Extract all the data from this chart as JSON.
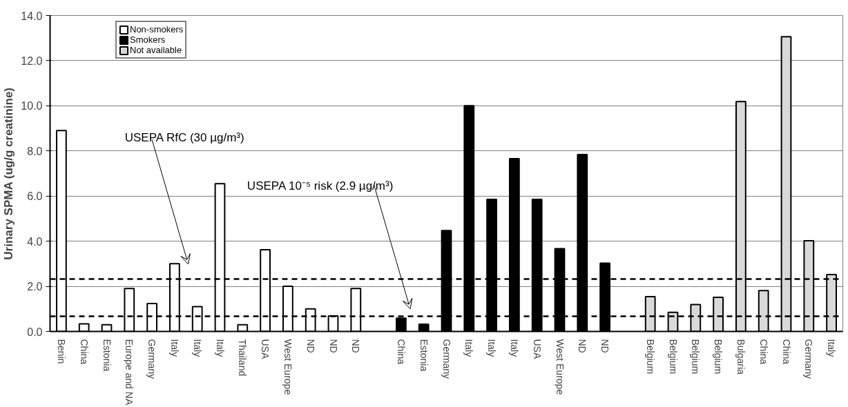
{
  "chart_data": {
    "type": "bar",
    "ylabel": "Urinary SPMA (ug/g creatinine)",
    "categories": [
      "Benin",
      "China",
      "Estonia",
      "Europe and NA",
      "Germany",
      "Italy",
      "Italy",
      "Italy",
      "Thailand",
      "USA",
      "West Europe",
      "ND",
      "ND",
      "ND",
      null,
      "China",
      "Estonia",
      "Germany",
      "Italy",
      "Italy",
      "Italy",
      "USA",
      "West Europe",
      "ND",
      "ND",
      null,
      "Belgium",
      "Belgium",
      "Belgium",
      "Belgium",
      "Bulgaria",
      "China",
      "China",
      "Germany",
      "Italy"
    ],
    "series": [
      {
        "name": "Non-smokers",
        "color": "#ffffff",
        "values": [
          8.9,
          0.34,
          0.3,
          1.9,
          1.24,
          3.0,
          1.1,
          6.55,
          0.3,
          3.62,
          2.0,
          1.0,
          0.69,
          1.9,
          null,
          null,
          null,
          null,
          null,
          null,
          null,
          null,
          null,
          null,
          null,
          null,
          null,
          null,
          null,
          null,
          null,
          null,
          null,
          null,
          null
        ]
      },
      {
        "name": "Smokers",
        "color": "#000000",
        "values": [
          null,
          null,
          null,
          null,
          null,
          null,
          null,
          null,
          null,
          null,
          null,
          null,
          null,
          null,
          null,
          0.59,
          0.32,
          4.47,
          10.0,
          5.85,
          7.66,
          5.85,
          3.67,
          7.84,
          3.03,
          null,
          null,
          null,
          null,
          null,
          null,
          null,
          null,
          null,
          null
        ]
      },
      {
        "name": "Not available",
        "color": "#d9d9d9",
        "values": [
          null,
          null,
          null,
          null,
          null,
          null,
          null,
          null,
          null,
          null,
          null,
          null,
          null,
          null,
          null,
          null,
          null,
          null,
          null,
          null,
          null,
          null,
          null,
          null,
          null,
          null,
          1.54,
          0.85,
          1.19,
          1.51,
          10.19,
          1.81,
          13.06,
          4.02,
          2.52
        ]
      }
    ],
    "ylim": [
      0,
      14
    ],
    "yticks": [
      {
        "value": 0,
        "label": "0.0"
      },
      {
        "value": 2,
        "label": "2.0"
      },
      {
        "value": 4,
        "label": "4.0"
      },
      {
        "value": 6,
        "label": "6.0"
      },
      {
        "value": 8,
        "label": "8.0"
      },
      {
        "value": 10,
        "label": "10.0"
      },
      {
        "value": 12,
        "label": "12.0"
      },
      {
        "value": 14,
        "label": "14.0"
      }
    ],
    "ref_lines": [
      {
        "axis": "y",
        "value": 2.32,
        "color": "#000000",
        "line_style": "dashed"
      },
      {
        "axis": "y",
        "value": 0.67,
        "color": "#000000",
        "line_style": "dashed"
      }
    ],
    "annotations": [
      "USEPA RfC (30 µg/m³)",
      "USEPA 10⁻⁵ risk (2.9 µg/m³)"
    ],
    "grid": "y",
    "legend": "top left"
  }
}
